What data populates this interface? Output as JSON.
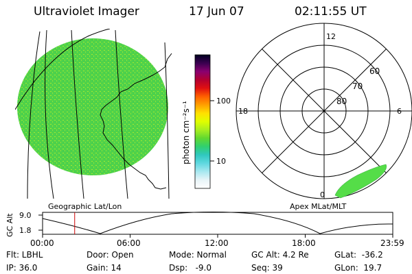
{
  "header": {
    "title": "Ultraviolet Imager",
    "date": "17 Jun 07",
    "time": "02:11:55 UT"
  },
  "colors": {
    "disk": "#4fd24a",
    "disk_speckle": "#a6e830",
    "aurora": "#55dd48",
    "time_marker": "#cc0000"
  },
  "colorbar": {
    "unit_label": "photon cm⁻²s⁻¹",
    "ticks": [
      "100",
      "10"
    ],
    "stops": [
      "#000020",
      "#3a0050",
      "#8a0070",
      "#b30030",
      "#e01010",
      "#ff6000",
      "#ffa000",
      "#ffe000",
      "#e0ff00",
      "#a8ee20",
      "#60d830",
      "#30d070",
      "#30c8c0",
      "#60d8e0",
      "#a8e8f0",
      "#e8f4f8",
      "#ffffff"
    ]
  },
  "left_panel": {
    "caption": "Geographic Lat/Lon"
  },
  "right_panel": {
    "caption": "Apex MLat/MLT",
    "mlt_labels": {
      "top": "12",
      "left": "18",
      "right": "6",
      "bottom": "0"
    },
    "lat_labels": [
      "60",
      "70",
      "80"
    ]
  },
  "altitude_plot": {
    "ylabel": "GC Alt",
    "yticks": [
      "9.0",
      "1.8"
    ],
    "xticks": [
      "00:00",
      "06:00",
      "12:00",
      "18:00",
      "23:59"
    ],
    "current_time_hours": 2.2
  },
  "info": {
    "filter": "Flt: LBHL",
    "ip": "IP: 36.0",
    "door": "Door: Open",
    "gain": "Gain: 14",
    "mode": "Mode: Normal",
    "dsp": "Dsp:   -9.0",
    "gc_alt": "GC Alt: 4.2 Re",
    "seq": "Seq: 39",
    "glat": "GLat:  -36.2",
    "glon": "GLon:  19.7"
  }
}
